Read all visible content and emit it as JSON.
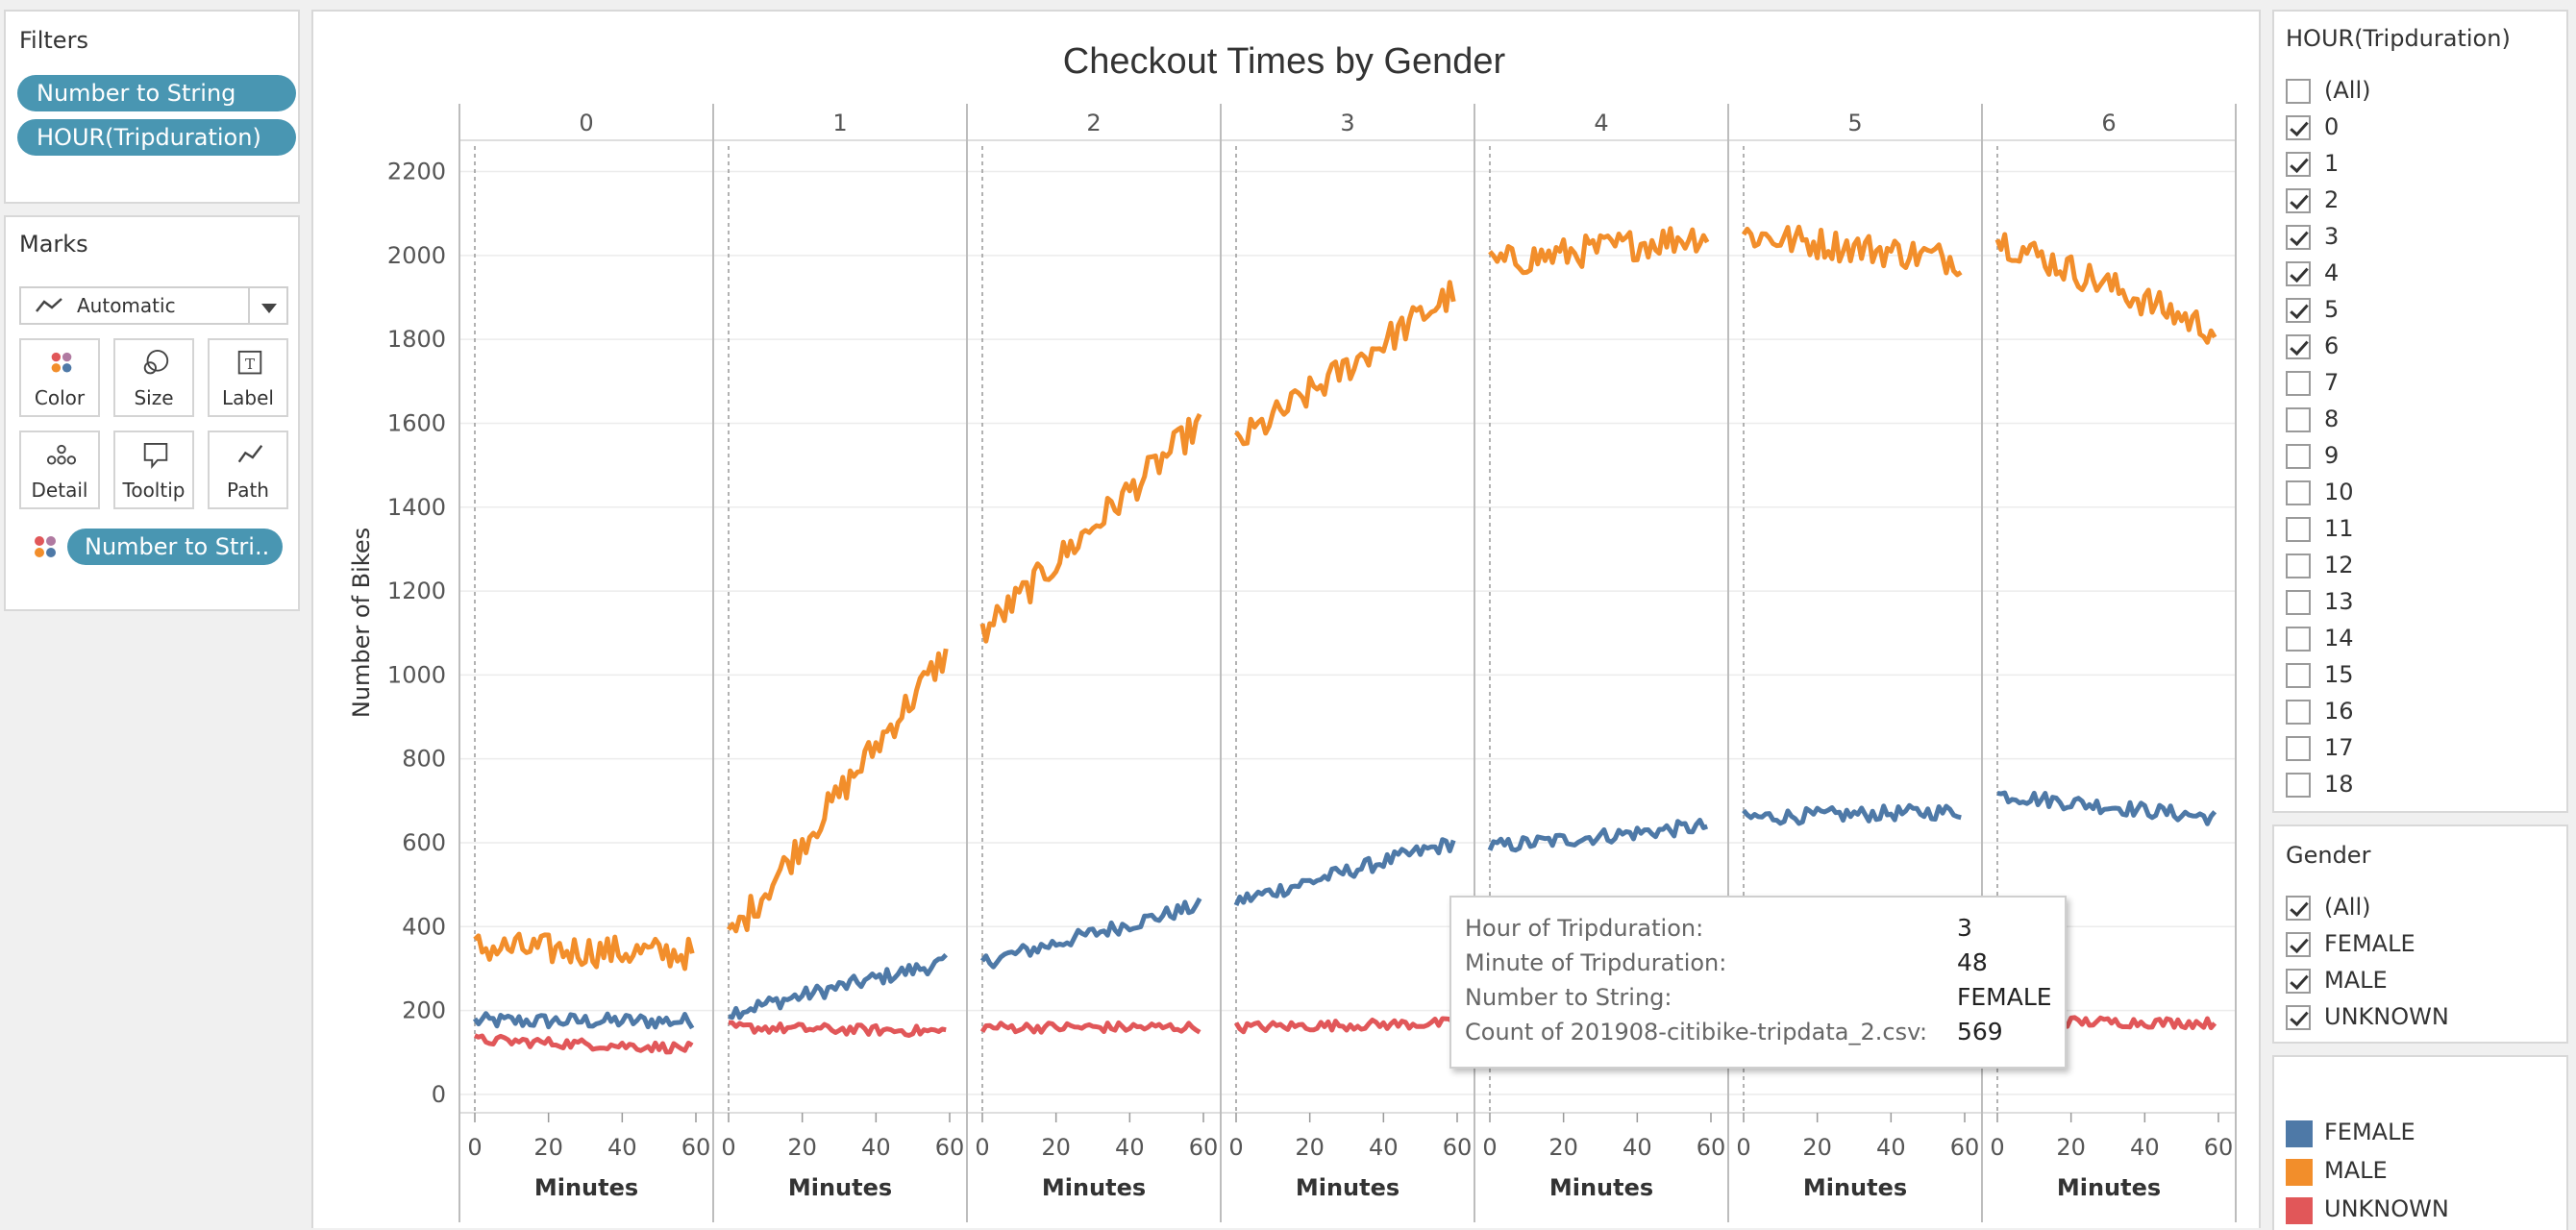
{
  "filters": {
    "title": "Filters",
    "pills": [
      "Number to String",
      "HOUR(Tripduration)"
    ]
  },
  "marks": {
    "title": "Marks",
    "type": "Automatic",
    "buttons": [
      "Color",
      "Size",
      "Label",
      "Detail",
      "Tooltip",
      "Path"
    ],
    "color_pill": "Number to Stri.."
  },
  "hour_filter": {
    "title": "HOUR(Tripduration)",
    "items": [
      {
        "label": "(All)",
        "checked": false
      },
      {
        "label": "0",
        "checked": true
      },
      {
        "label": "1",
        "checked": true
      },
      {
        "label": "2",
        "checked": true
      },
      {
        "label": "3",
        "checked": true
      },
      {
        "label": "4",
        "checked": true
      },
      {
        "label": "5",
        "checked": true
      },
      {
        "label": "6",
        "checked": true
      },
      {
        "label": "7",
        "checked": false
      },
      {
        "label": "8",
        "checked": false
      },
      {
        "label": "9",
        "checked": false
      },
      {
        "label": "10",
        "checked": false
      },
      {
        "label": "11",
        "checked": false
      },
      {
        "label": "12",
        "checked": false
      },
      {
        "label": "13",
        "checked": false
      },
      {
        "label": "14",
        "checked": false
      },
      {
        "label": "15",
        "checked": false
      },
      {
        "label": "16",
        "checked": false
      },
      {
        "label": "17",
        "checked": false
      },
      {
        "label": "18",
        "checked": false
      }
    ]
  },
  "gender_filter": {
    "title": "Gender",
    "items": [
      {
        "label": "(All)",
        "checked": true
      },
      {
        "label": "FEMALE",
        "checked": true
      },
      {
        "label": "MALE",
        "checked": true
      },
      {
        "label": "UNKNOWN",
        "checked": true
      }
    ]
  },
  "legend": {
    "items": [
      {
        "label": "FEMALE",
        "color": "#4e79a7"
      },
      {
        "label": "MALE",
        "color": "#f28e2b"
      },
      {
        "label": "UNKNOWN",
        "color": "#e15759"
      }
    ]
  },
  "tooltip": {
    "rows": [
      {
        "label": "Hour of Tripduration:",
        "value": "3"
      },
      {
        "label": "Minute of Tripduration:",
        "value": "48"
      },
      {
        "label": "Number to String:",
        "value": "FEMALE"
      },
      {
        "label": "Count of 201908-citibike-tripdata_2.csv:",
        "value": "569"
      }
    ]
  },
  "chart_data": {
    "type": "line",
    "title": "Checkout Times by Gender",
    "ylabel": "Number of Bikes",
    "xlabel": "Minutes",
    "ylim": [
      -30,
      2270
    ],
    "yticks": [
      0,
      200,
      400,
      600,
      800,
      1000,
      1200,
      1400,
      1600,
      1800,
      2000,
      2200
    ],
    "xticks": [
      0,
      20,
      40,
      60
    ],
    "facets": [
      "0",
      "1",
      "2",
      "3",
      "4",
      "5",
      "6"
    ],
    "grid": true,
    "series": [
      {
        "name": "FEMALE",
        "color": "#4e79a7",
        "start": [
          175,
          195,
          315,
          460,
          590,
          660,
          715
        ],
        "end": [
          175,
          315,
          450,
          600,
          640,
          675,
          660
        ]
      },
      {
        "name": "MALE",
        "color": "#f28e2b",
        "start": [
          350,
          370,
          1100,
          1550,
          1980,
          2050,
          2040
        ],
        "end": [
          335,
          1050,
          1600,
          1910,
          2050,
          1990,
          1820
        ]
      },
      {
        "name": "UNKNOWN",
        "color": "#e15759",
        "start": [
          130,
          160,
          160,
          160,
          170,
          170,
          175
        ],
        "end": [
          110,
          150,
          160,
          170,
          175,
          175,
          170
        ]
      }
    ]
  }
}
